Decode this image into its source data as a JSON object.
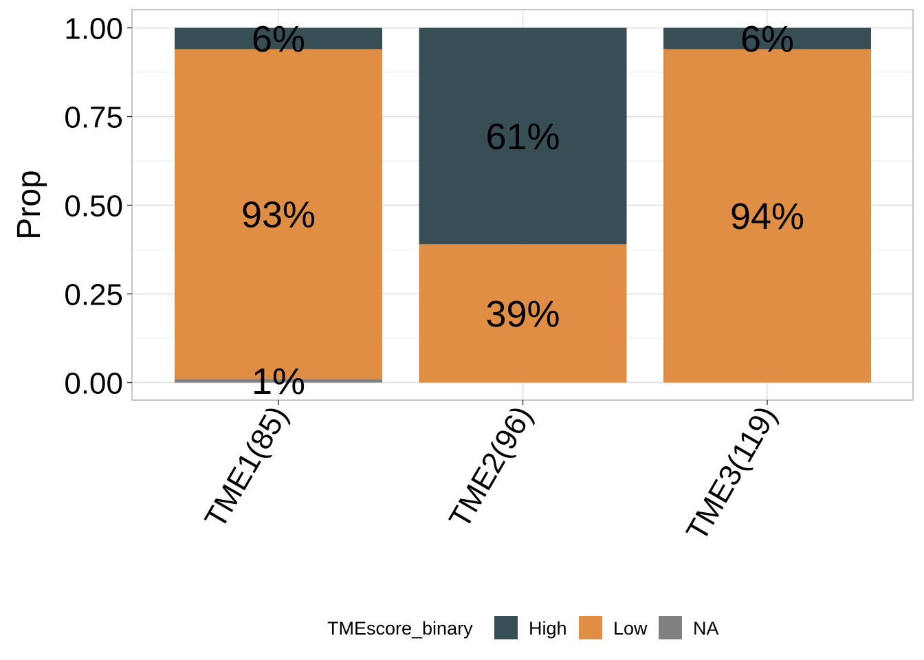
{
  "chart_data": {
    "type": "bar",
    "stacked": true,
    "title": "",
    "xlabel": "",
    "ylabel": "Prop",
    "ylim": [
      0,
      1
    ],
    "yticks": [
      "0.00",
      "0.25",
      "0.50",
      "0.75",
      "1.00"
    ],
    "grid": true,
    "categories": [
      "TME1(85)",
      "TME2(96)",
      "TME3(119)"
    ],
    "series": [
      {
        "name": "NA",
        "color": "#808080",
        "values": [
          0.01,
          0.0,
          0.0
        ],
        "labels": [
          "1%",
          "",
          ""
        ]
      },
      {
        "name": "Low",
        "color": "#DF8E44",
        "values": [
          0.93,
          0.39,
          0.94
        ],
        "labels": [
          "93%",
          "39%",
          "94%"
        ]
      },
      {
        "name": "High",
        "color": "#374E55",
        "values": [
          0.06,
          0.61,
          0.06
        ],
        "labels": [
          "6%",
          "61%",
          "6%"
        ]
      }
    ],
    "legend": {
      "title": "TMEscore_binary",
      "position": "bottom",
      "entries": [
        {
          "label": "High",
          "color": "#374E55"
        },
        {
          "label": "Low",
          "color": "#DF8E44"
        },
        {
          "label": "NA",
          "color": "#808080"
        }
      ]
    }
  }
}
